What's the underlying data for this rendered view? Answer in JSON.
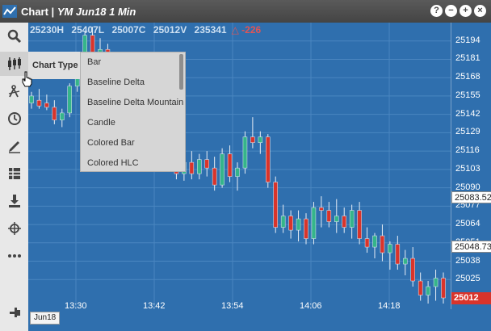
{
  "window": {
    "title_prefix": "Chart | ",
    "title_symbol": "YM Jun18 1 Min",
    "controls": {
      "help": "?",
      "minimize": "−",
      "maximize": "+",
      "close": "×"
    }
  },
  "header": {
    "high": "25230H",
    "low": "25407L",
    "close": "25007C",
    "volume": "25012V",
    "last": "235341",
    "change": "-226"
  },
  "sidebar": {
    "tools": [
      {
        "name": "search-icon"
      },
      {
        "name": "chart-type-icon"
      },
      {
        "name": "studies-icon"
      },
      {
        "name": "history-icon"
      },
      {
        "name": "draw-icon"
      },
      {
        "name": "layout-icon"
      },
      {
        "name": "download-icon"
      },
      {
        "name": "crosshair-icon"
      },
      {
        "name": "more-icon"
      },
      {
        "name": "pin-icon"
      }
    ]
  },
  "menu": {
    "title": "Chart Type",
    "items": [
      "Bar",
      "Baseline Delta",
      "Baseline Delta Mountain",
      "Candle",
      "Colored Bar",
      "Colored HLC"
    ]
  },
  "contract_tab": "Jun18",
  "chart_data": {
    "type": "candlestick",
    "x_ticks": [
      "13:30",
      "13:42",
      "13:54",
      "14:06",
      "14:18"
    ],
    "y_ticks": [
      "25194",
      "25181",
      "25168",
      "25155",
      "25142",
      "25129",
      "25116",
      "25103",
      "25090",
      "25077",
      "25064",
      "25051",
      "25038",
      "25025"
    ],
    "y_markers": [
      {
        "value": "25083.52",
        "style": "white"
      },
      {
        "value": "25048.73",
        "style": "white"
      },
      {
        "value": "25012",
        "style": "red"
      }
    ],
    "ylim": [
      25004,
      25207
    ],
    "up_color": "#35b58a",
    "down_color": "#d9342b",
    "candles": [
      {
        "o": 25150,
        "h": 25158,
        "l": 25146,
        "c": 25155
      },
      {
        "o": 25152,
        "h": 25160,
        "l": 25146,
        "c": 25148
      },
      {
        "o": 25150,
        "h": 25156,
        "l": 25145,
        "c": 25147
      },
      {
        "o": 25147,
        "h": 25152,
        "l": 25135,
        "c": 25138
      },
      {
        "o": 25138,
        "h": 25146,
        "l": 25133,
        "c": 25143
      },
      {
        "o": 25143,
        "h": 25164,
        "l": 25140,
        "c": 25162
      },
      {
        "o": 25162,
        "h": 25182,
        "l": 25158,
        "c": 25180
      },
      {
        "o": 25180,
        "h": 25201,
        "l": 25176,
        "c": 25198
      },
      {
        "o": 25198,
        "h": 25204,
        "l": 25183,
        "c": 25186
      },
      {
        "o": 25186,
        "h": 25196,
        "l": 25176,
        "c": 25188
      },
      {
        "o": 25188,
        "h": 25192,
        "l": 25168,
        "c": 25170
      },
      {
        "o": 25170,
        "h": 25178,
        "l": 25160,
        "c": 25172
      },
      {
        "o": 25172,
        "h": 25176,
        "l": 25155,
        "c": 25158
      },
      {
        "o": 25158,
        "h": 25168,
        "l": 25150,
        "c": 25164
      },
      {
        "o": 25164,
        "h": 25170,
        "l": 25140,
        "c": 25142
      },
      {
        "o": 25142,
        "h": 25150,
        "l": 25126,
        "c": 25128
      },
      {
        "o": 25128,
        "h": 25140,
        "l": 25120,
        "c": 25136
      },
      {
        "o": 25136,
        "h": 25144,
        "l": 25118,
        "c": 25120
      },
      {
        "o": 25120,
        "h": 25126,
        "l": 25110,
        "c": 25112
      },
      {
        "o": 25112,
        "h": 25118,
        "l": 25096,
        "c": 25100
      },
      {
        "o": 25100,
        "h": 25112,
        "l": 25095,
        "c": 25108
      },
      {
        "o": 25108,
        "h": 25116,
        "l": 25096,
        "c": 25100
      },
      {
        "o": 25100,
        "h": 25114,
        "l": 25096,
        "c": 25110
      },
      {
        "o": 25110,
        "h": 25116,
        "l": 25098,
        "c": 25104
      },
      {
        "o": 25104,
        "h": 25112,
        "l": 25088,
        "c": 25092
      },
      {
        "o": 25092,
        "h": 25118,
        "l": 25090,
        "c": 25114
      },
      {
        "o": 25114,
        "h": 25120,
        "l": 25094,
        "c": 25098
      },
      {
        "o": 25098,
        "h": 25108,
        "l": 25088,
        "c": 25104
      },
      {
        "o": 25104,
        "h": 25130,
        "l": 25100,
        "c": 25126
      },
      {
        "o": 25126,
        "h": 25140,
        "l": 25118,
        "c": 25122
      },
      {
        "o": 25122,
        "h": 25130,
        "l": 25114,
        "c": 25126
      },
      {
        "o": 25126,
        "h": 25128,
        "l": 25090,
        "c": 25094
      },
      {
        "o": 25094,
        "h": 25098,
        "l": 25058,
        "c": 25062
      },
      {
        "o": 25062,
        "h": 25078,
        "l": 25058,
        "c": 25070
      },
      {
        "o": 25070,
        "h": 25074,
        "l": 25054,
        "c": 25060
      },
      {
        "o": 25060,
        "h": 25074,
        "l": 25052,
        "c": 25068
      },
      {
        "o": 25068,
        "h": 25072,
        "l": 25050,
        "c": 25054
      },
      {
        "o": 25054,
        "h": 25080,
        "l": 25050,
        "c": 25076
      },
      {
        "o": 25076,
        "h": 25084,
        "l": 25062,
        "c": 25074
      },
      {
        "o": 25074,
        "h": 25080,
        "l": 25062,
        "c": 25066
      },
      {
        "o": 25066,
        "h": 25082,
        "l": 25058,
        "c": 25070
      },
      {
        "o": 25070,
        "h": 25076,
        "l": 25058,
        "c": 25062
      },
      {
        "o": 25062,
        "h": 25078,
        "l": 25054,
        "c": 25074
      },
      {
        "o": 25074,
        "h": 25080,
        "l": 25050,
        "c": 25054
      },
      {
        "o": 25054,
        "h": 25062,
        "l": 25044,
        "c": 25048
      },
      {
        "o": 25048,
        "h": 25058,
        "l": 25040,
        "c": 25056
      },
      {
        "o": 25056,
        "h": 25064,
        "l": 25038,
        "c": 25044
      },
      {
        "o": 25044,
        "h": 25052,
        "l": 25032,
        "c": 25050
      },
      {
        "o": 25050,
        "h": 25056,
        "l": 25032,
        "c": 25036
      },
      {
        "o": 25036,
        "h": 25046,
        "l": 25028,
        "c": 25040
      },
      {
        "o": 25040,
        "h": 25048,
        "l": 25020,
        "c": 25024
      },
      {
        "o": 25024,
        "h": 25030,
        "l": 25010,
        "c": 25014
      },
      {
        "o": 25014,
        "h": 25024,
        "l": 25008,
        "c": 25020
      },
      {
        "o": 25020,
        "h": 25032,
        "l": 25010,
        "c": 25026
      },
      {
        "o": 25026,
        "h": 25030,
        "l": 25008,
        "c": 25012
      }
    ]
  }
}
